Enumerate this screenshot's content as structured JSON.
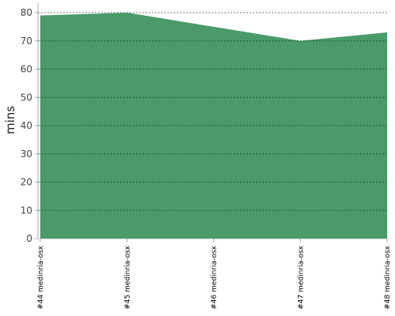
{
  "chart_data": {
    "type": "area",
    "categories": [
      "#44 medinria-osx",
      "#45 medinria-osx",
      "#46 medinria-osx",
      "#47 medinria-osx",
      "#48 medinria-osx"
    ],
    "values": [
      79,
      80,
      75,
      70,
      73
    ],
    "ylabel": "mins",
    "xlabel": "",
    "ylim": [
      0,
      80
    ],
    "yticks": [
      0,
      10,
      20,
      30,
      40,
      50,
      60,
      70,
      80
    ],
    "grid": true,
    "colors": {
      "area": "#4a9a6a",
      "gridline": "#333333",
      "axis": "#aaaaaa"
    }
  }
}
